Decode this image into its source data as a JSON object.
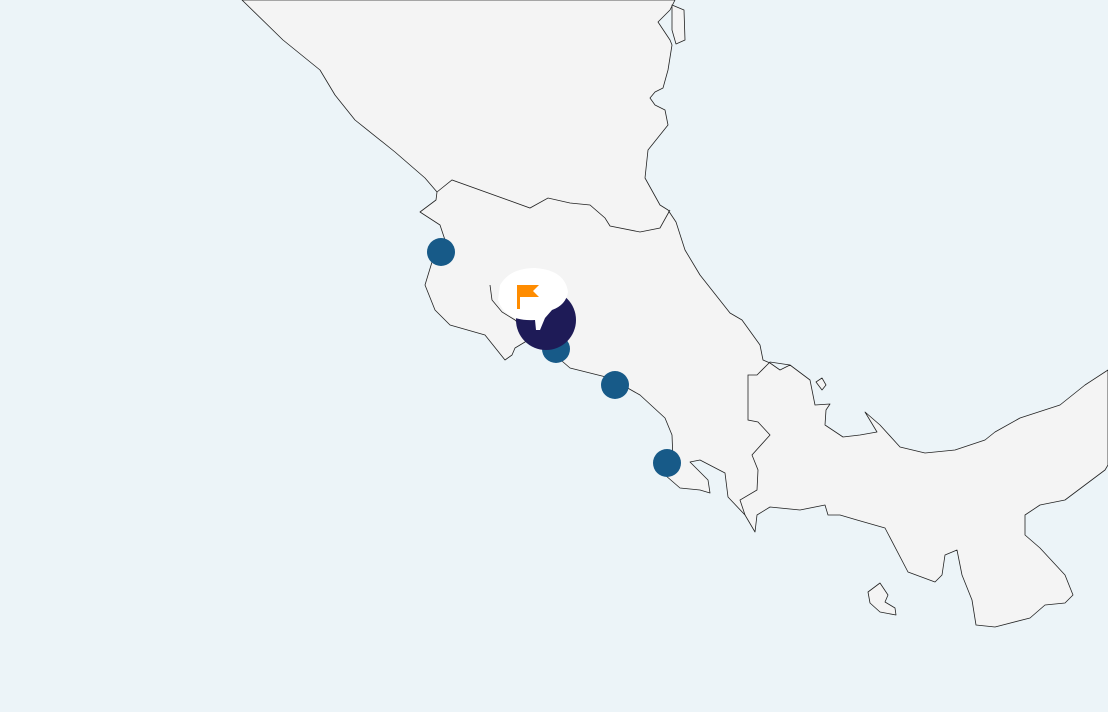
{
  "map": {
    "region": "Central America",
    "colors": {
      "water": "#ecf4f8",
      "land": "#f4f4f4",
      "marker": "#175a88",
      "cluster_marker": "#1e1b57",
      "flag": "#ff8c00"
    },
    "markers": [
      {
        "type": "location-marker",
        "icon": "circle"
      },
      {
        "type": "location-marker",
        "icon": "circle"
      },
      {
        "type": "location-marker",
        "icon": "circle"
      },
      {
        "type": "location-marker",
        "icon": "circle"
      }
    ],
    "selected_marker": {
      "icon": "flag-icon"
    },
    "cluster_marker": {
      "icon": "circle"
    }
  }
}
